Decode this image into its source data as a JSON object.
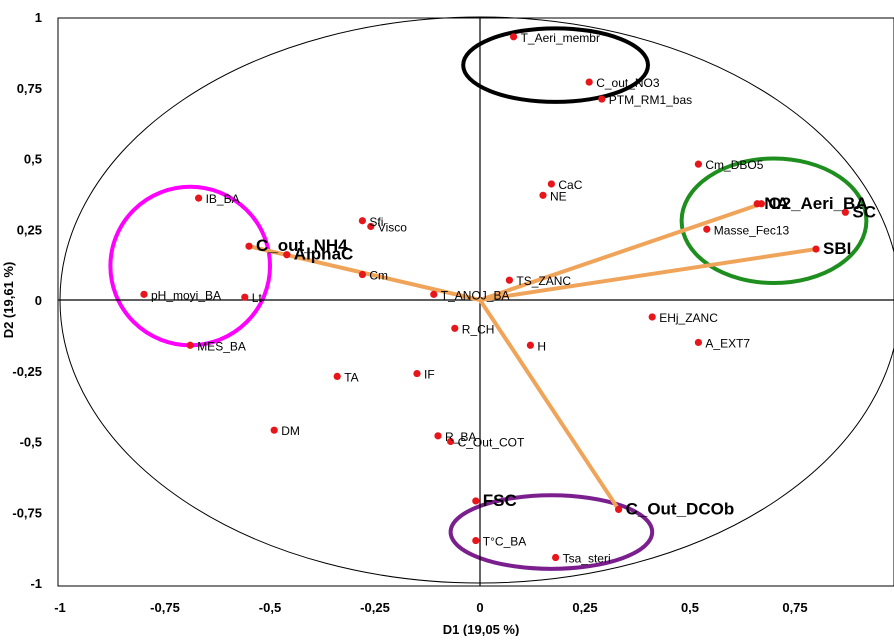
{
  "chart_data": {
    "type": "scatter",
    "xlabel": "D1 (19,05 %)",
    "ylabel": "D2 (19,61 %)",
    "xlim": [
      -1,
      1
    ],
    "ylim": [
      -1,
      1
    ],
    "xticks": [
      {
        "v": -1,
        "label": "-1"
      },
      {
        "v": -0.75,
        "label": "-0,75"
      },
      {
        "v": -0.5,
        "label": "-0,5"
      },
      {
        "v": -0.25,
        "label": "-0,25"
      },
      {
        "v": 0,
        "label": "0"
      },
      {
        "v": 0.25,
        "label": "0,25"
      },
      {
        "v": 0.5,
        "label": "0,5"
      },
      {
        "v": 0.75,
        "label": "0,75"
      }
    ],
    "yticks": [
      {
        "v": 1,
        "label": "1"
      },
      {
        "v": 0.75,
        "label": "0,75"
      },
      {
        "v": 0.5,
        "label": "0,5"
      },
      {
        "v": 0.25,
        "label": "0,25"
      },
      {
        "v": 0,
        "label": "0"
      },
      {
        "v": -0.25,
        "label": "-0,25"
      },
      {
        "v": -0.5,
        "label": "-0,5"
      },
      {
        "v": -0.75,
        "label": "-0,75"
      },
      {
        "v": -1,
        "label": "-1"
      }
    ],
    "points": [
      {
        "label": "T_Aeri_membr",
        "x": 0.08,
        "y": 0.93,
        "big": false
      },
      {
        "label": "C_out_NO3",
        "x": 0.26,
        "y": 0.77,
        "big": false
      },
      {
        "label": "PTM_RM1_bas",
        "x": 0.29,
        "y": 0.71,
        "big": false
      },
      {
        "label": "CaC",
        "x": 0.17,
        "y": 0.41,
        "big": false
      },
      {
        "label": "NE",
        "x": 0.15,
        "y": 0.37,
        "big": false
      },
      {
        "label": "Cm_DBO5",
        "x": 0.52,
        "y": 0.48,
        "big": false
      },
      {
        "label": "O2_Aeri_BA",
        "x": 0.67,
        "y": 0.34,
        "big": true
      },
      {
        "label": "NA",
        "x": 0.66,
        "y": 0.34,
        "big": true
      },
      {
        "label": "SC",
        "x": 0.87,
        "y": 0.31,
        "big": true
      },
      {
        "label": "SBI",
        "x": 0.8,
        "y": 0.18,
        "big": true
      },
      {
        "label": "Masse_Fec13",
        "x": 0.54,
        "y": 0.25,
        "big": false
      },
      {
        "label": "IB_BA",
        "x": -0.67,
        "y": 0.36,
        "big": false
      },
      {
        "label": "C_out_NH4",
        "x": -0.55,
        "y": 0.19,
        "big": true
      },
      {
        "label": "AlphaC",
        "x": -0.46,
        "y": 0.16,
        "big": true
      },
      {
        "label": "Sfi",
        "x": -0.28,
        "y": 0.28,
        "big": false
      },
      {
        "label": "Visco",
        "x": -0.26,
        "y": 0.26,
        "big": false
      },
      {
        "label": "Cm",
        "x": -0.28,
        "y": 0.09,
        "big": false
      },
      {
        "label": "T_ANOJ_BA",
        "x": -0.11,
        "y": 0.02,
        "big": false
      },
      {
        "label": "TS_ZANC",
        "x": 0.07,
        "y": 0.07,
        "big": false
      },
      {
        "label": "pH_moyi_BA",
        "x": -0.8,
        "y": 0.02,
        "big": false
      },
      {
        "label": "Lt",
        "x": -0.56,
        "y": 0.01,
        "big": false
      },
      {
        "label": "MES_BA",
        "x": -0.69,
        "y": -0.16,
        "big": false
      },
      {
        "label": "R_CH",
        "x": -0.06,
        "y": -0.1,
        "big": false
      },
      {
        "label": "H",
        "x": 0.12,
        "y": -0.16,
        "big": false
      },
      {
        "label": "EHj_ZANC",
        "x": 0.41,
        "y": -0.06,
        "big": false
      },
      {
        "label": "A_EXT7",
        "x": 0.52,
        "y": -0.15,
        "big": false
      },
      {
        "label": "TA",
        "x": -0.34,
        "y": -0.27,
        "big": false
      },
      {
        "label": "IF",
        "x": -0.15,
        "y": -0.26,
        "big": false
      },
      {
        "label": "DM",
        "x": -0.49,
        "y": -0.46,
        "big": false
      },
      {
        "label": "R_BA",
        "x": -0.1,
        "y": -0.48,
        "big": false
      },
      {
        "label": "C_Out_COT",
        "x": -0.07,
        "y": -0.5,
        "big": false
      },
      {
        "label": "FSC",
        "x": -0.01,
        "y": -0.71,
        "big": true
      },
      {
        "label": "C_Out_DCOb",
        "x": 0.33,
        "y": -0.74,
        "big": true
      },
      {
        "label": "T°C_BA",
        "x": -0.01,
        "y": -0.85,
        "big": false
      },
      {
        "label": "Tsa_steri",
        "x": 0.18,
        "y": -0.91,
        "big": false
      }
    ],
    "vectors": [
      {
        "to": "O2_Aeri_BA",
        "x": 0.67,
        "y": 0.34
      },
      {
        "to": "SBI",
        "x": 0.8,
        "y": 0.18
      },
      {
        "to": "C_out_NH4",
        "x": -0.55,
        "y": 0.19
      },
      {
        "to": "C_Out_DCOb",
        "x": 0.33,
        "y": -0.74
      }
    ],
    "vector_origin": {
      "x": 0,
      "y": 0
    },
    "circle": {
      "cx": 0,
      "cy": 0,
      "r": 1
    },
    "group_ellipses": [
      {
        "color": "#000000",
        "cx": 0.18,
        "cy": 0.83,
        "rx": 0.22,
        "ry": 0.13
      },
      {
        "color": "#1e8f1e",
        "cx": 0.7,
        "cy": 0.28,
        "rx": 0.22,
        "ry": 0.22
      },
      {
        "color": "#ff00ff",
        "cx": -0.69,
        "cy": 0.12,
        "rx": 0.19,
        "ry": 0.28
      },
      {
        "color": "#7b1f8f",
        "cx": 0.17,
        "cy": -0.82,
        "rx": 0.24,
        "ry": 0.13
      }
    ],
    "colors": {
      "point": "#e8161b",
      "vector": "#f0a45a",
      "axis": "#000000",
      "circle": "#000000"
    },
    "grid": false
  }
}
